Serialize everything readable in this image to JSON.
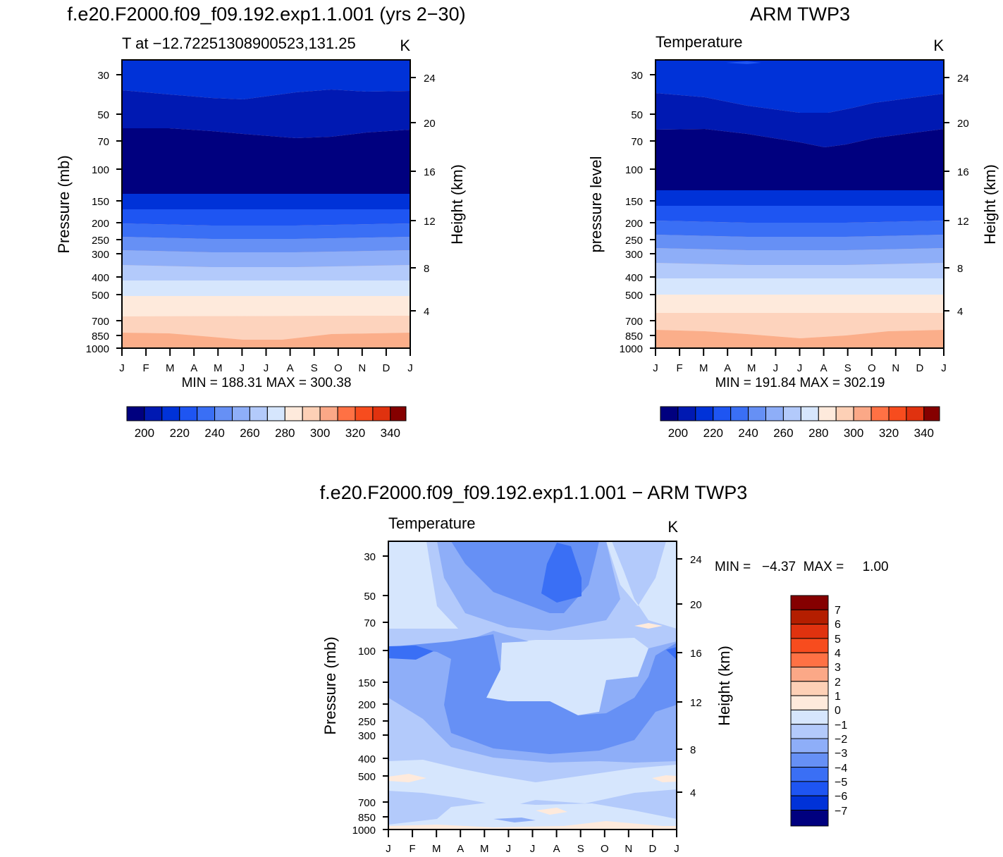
{
  "chart_data": [
    {
      "id": "model",
      "type": "heatmap",
      "title": "f.e20.F2000.f09_f09.192.exp1.1.001 (yrs 2−30)",
      "subtitle_left": "T at −12.72251308900523,131.25",
      "subtitle_right": "K",
      "ylabel": "Pressure (mb)",
      "ylabel_right": "Height (km)",
      "x": [
        "J",
        "F",
        "M",
        "A",
        "M",
        "J",
        "J",
        "A",
        "S",
        "O",
        "N",
        "D",
        "J"
      ],
      "y_ticks": [
        30,
        50,
        70,
        100,
        150,
        200,
        250,
        300,
        400,
        500,
        700,
        850,
        1000
      ],
      "yr_ticks": [
        24,
        20,
        16,
        12,
        8,
        4
      ],
      "ylim": [
        1000,
        24
      ],
      "stats": "MIN = 188.31  MAX = 300.38",
      "levels": [
        200,
        210,
        220,
        230,
        240,
        250,
        260,
        270,
        280,
        290,
        300,
        310,
        320,
        330,
        340
      ],
      "colorbar_labels": [
        "200",
        "220",
        "240",
        "260",
        "280",
        "300",
        "320",
        "340"
      ],
      "min": 188.31,
      "max": 300.38
    },
    {
      "id": "obs",
      "type": "heatmap",
      "title": "ARM TWP3",
      "subtitle_left": "Temperature",
      "subtitle_right": "K",
      "ylabel": "pressure level",
      "ylabel_right": "Height (km)",
      "x": [
        "J",
        "F",
        "M",
        "A",
        "M",
        "J",
        "J",
        "A",
        "S",
        "O",
        "N",
        "D",
        "J"
      ],
      "y_ticks": [
        30,
        50,
        70,
        100,
        150,
        200,
        250,
        300,
        400,
        500,
        700,
        850,
        1000
      ],
      "yr_ticks": [
        24,
        20,
        16,
        12,
        8,
        4
      ],
      "ylim": [
        1000,
        24
      ],
      "stats": "MIN = 191.84  MAX = 302.19",
      "levels": [
        200,
        210,
        220,
        230,
        240,
        250,
        260,
        270,
        280,
        290,
        300,
        310,
        320,
        330,
        340
      ],
      "colorbar_labels": [
        "200",
        "220",
        "240",
        "260",
        "280",
        "300",
        "320",
        "340"
      ],
      "min": 191.84,
      "max": 302.19
    },
    {
      "id": "diff",
      "type": "heatmap",
      "title": "f.e20.F2000.f09_f09.192.exp1.1.001 − ARM TWP3",
      "subtitle_left": "Temperature",
      "subtitle_right": "K",
      "ylabel": "Pressure (mb)",
      "ylabel_right": "Height (km)",
      "x": [
        "J",
        "F",
        "M",
        "A",
        "M",
        "J",
        "J",
        "A",
        "S",
        "O",
        "N",
        "D",
        "J"
      ],
      "y_ticks": [
        30,
        50,
        70,
        100,
        150,
        200,
        250,
        300,
        400,
        500,
        700,
        850,
        1000
      ],
      "yr_ticks": [
        24,
        20,
        16,
        12,
        8,
        4
      ],
      "ylim": [
        1000,
        24
      ],
      "stats_label": "MIN =   −4.37  MAX =     1.00",
      "levels": [
        -7,
        -6,
        -5,
        -4,
        -3,
        -2,
        -1,
        0,
        1,
        2,
        3,
        4,
        5,
        6,
        7
      ],
      "colorbar_labels": [
        "7",
        "6",
        "5",
        "4",
        "3",
        "2",
        "1",
        "0",
        "−1",
        "−2",
        "−3",
        "−4",
        "−5",
        "−6",
        "−7"
      ],
      "min": -4.37,
      "max": 1.0
    }
  ],
  "colors": {
    "palette": [
      "#00007f",
      "#0019b2",
      "#0032d8",
      "#1e55f2",
      "#3a6ff5",
      "#6690f5",
      "#8eaef8",
      "#b3cafb",
      "#d6e6fd",
      "#feeadc",
      "#fdd0b6",
      "#fba887",
      "#ff7144",
      "#f74c1e",
      "#e0320f",
      "#b41e00",
      "#850000"
    ]
  }
}
